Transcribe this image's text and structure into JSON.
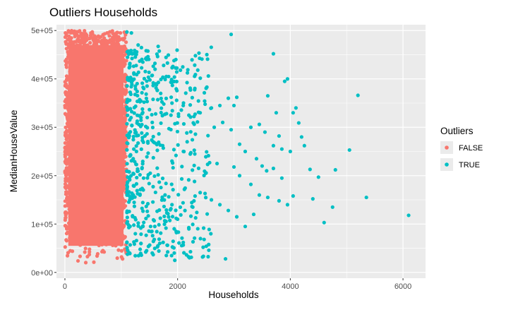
{
  "chart_data": {
    "type": "scatter",
    "title": "Outliers Households",
    "xlabel": "Households",
    "ylabel": "MedianHouseValue",
    "xlim": [
      -150,
      6400
    ],
    "ylim": [
      -12000,
      512000
    ],
    "x_ticks": [
      0,
      2000,
      4000,
      6000
    ],
    "x_tick_labels": [
      "0",
      "2000",
      "4000",
      "6000"
    ],
    "y_ticks": [
      0,
      100000,
      200000,
      300000,
      400000,
      500000
    ],
    "y_tick_labels": [
      "0e+00",
      "1e+05",
      "2e+05",
      "3e+05",
      "4e+05",
      "5e+05"
    ],
    "grid": true,
    "legend": {
      "title": "Outliers",
      "position": "right"
    },
    "series": [
      {
        "name": "FALSE",
        "color": "#F8766D",
        "x_range": [
          0,
          1092
        ],
        "y_range": [
          15000,
          500001
        ],
        "note_points_dense": true
      },
      {
        "name": "TRUE",
        "color": "#00BFC4",
        "points": [
          [
            1100,
            497000
          ],
          [
            1180,
            495000
          ],
          [
            1300,
            470000
          ],
          [
            1450,
            440000
          ],
          [
            1600,
            420000
          ],
          [
            1800,
            405000
          ],
          [
            2050,
            418000
          ],
          [
            1250,
            385000
          ],
          [
            1400,
            380000
          ],
          [
            1700,
            370000
          ],
          [
            1900,
            350000
          ],
          [
            2100,
            345000
          ],
          [
            2400,
            330000
          ],
          [
            2600,
            340000
          ],
          [
            2750,
            345000
          ],
          [
            2900,
            360000
          ],
          [
            3050,
            362000
          ],
          [
            3000,
            345000
          ],
          [
            2200,
            325000
          ],
          [
            1550,
            310000
          ],
          [
            1350,
            320000
          ],
          [
            2650,
            300000
          ],
          [
            2800,
            310000
          ],
          [
            2950,
            295000
          ],
          [
            3300,
            300000
          ],
          [
            3450,
            306000
          ],
          [
            3600,
            365000
          ],
          [
            3750,
            330000
          ],
          [
            3900,
            395000
          ],
          [
            4050,
            330000
          ],
          [
            4100,
            340000
          ],
          [
            4150,
            309000
          ],
          [
            4200,
            280000
          ],
          [
            4250,
            262000
          ],
          [
            3550,
            290000
          ],
          [
            3800,
            282000
          ],
          [
            3100,
            265000
          ],
          [
            3200,
            250000
          ],
          [
            3700,
            262000
          ],
          [
            3850,
            255000
          ],
          [
            4000,
            250000
          ],
          [
            3400,
            235000
          ],
          [
            3500,
            220000
          ],
          [
            3580,
            210000
          ],
          [
            3700,
            215000
          ],
          [
            3850,
            195000
          ],
          [
            4350,
            213000
          ],
          [
            4500,
            197000
          ],
          [
            4800,
            212000
          ],
          [
            5050,
            253000
          ],
          [
            5200,
            366000
          ],
          [
            3700,
            452000
          ],
          [
            3950,
            400000
          ],
          [
            2950,
            492000
          ],
          [
            3000,
            218000
          ],
          [
            3100,
            200000
          ],
          [
            3300,
            182000
          ],
          [
            3450,
            160000
          ],
          [
            3600,
            155000
          ],
          [
            3800,
            148000
          ],
          [
            3950,
            140000
          ],
          [
            4050,
            158000
          ],
          [
            4400,
            152000
          ],
          [
            4600,
            103000
          ],
          [
            4750,
            135000
          ],
          [
            5350,
            155000
          ],
          [
            6100,
            118000
          ],
          [
            2850,
            28000
          ],
          [
            2700,
            225000
          ],
          [
            2500,
            205000
          ],
          [
            2300,
            188000
          ],
          [
            2400,
            165000
          ],
          [
            2600,
            150000
          ],
          [
            2750,
            140000
          ],
          [
            2900,
            128000
          ],
          [
            3050,
            115000
          ],
          [
            3200,
            95000
          ],
          [
            3350,
            120000
          ],
          [
            1150,
            150000
          ],
          [
            1250,
            80000
          ],
          [
            1350,
            60000
          ],
          [
            1450,
            45000
          ],
          [
            1550,
            40000
          ],
          [
            1650,
            55000
          ],
          [
            1800,
            35000
          ],
          [
            1950,
            25000
          ],
          [
            2100,
            62000
          ],
          [
            2200,
            90000
          ],
          [
            2000,
            110000
          ],
          [
            1900,
            140000
          ]
        ]
      }
    ]
  }
}
